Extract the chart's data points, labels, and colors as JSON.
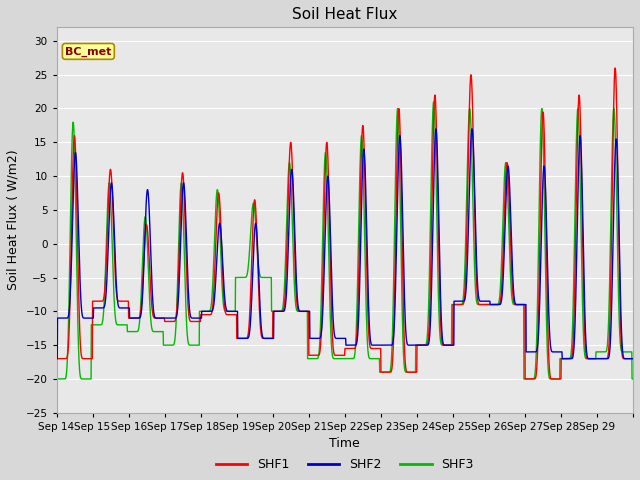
{
  "title": "Soil Heat Flux",
  "xlabel": "Time",
  "ylabel": "Soil Heat Flux (W/m2)",
  "ylim": [
    -25,
    32
  ],
  "yticks": [
    -25,
    -20,
    -15,
    -10,
    -5,
    0,
    5,
    10,
    15,
    20,
    25,
    30
  ],
  "xtick_labels": [
    "Sep 14",
    "Sep 15",
    "Sep 16",
    "Sep 17",
    "Sep 18",
    "Sep 19",
    "Sep 20",
    "Sep 21",
    "Sep 22",
    "Sep 23",
    "Sep 24",
    "Sep 25",
    "Sep 26",
    "Sep 27",
    "Sep 28",
    "Sep 29"
  ],
  "annotation_text": "BC_met",
  "annotation_color": "#8B0000",
  "annotation_bg": "#FFFF99",
  "line_colors": {
    "SHF1": "#FF0000",
    "SHF2": "#0000CC",
    "SHF3": "#00BB00"
  },
  "line_width": 1.0,
  "bg_color": "#D8D8D8",
  "plot_bg": "#E8E8E8",
  "grid_color": "#FFFFFF",
  "title_fontsize": 11,
  "label_fontsize": 9,
  "tick_fontsize": 7.5,
  "days": 16,
  "pts_per_day": 144,
  "shf1_peaks": [
    16.0,
    11.0,
    2.8,
    10.5,
    7.5,
    6.5,
    15.0,
    15.0,
    17.5,
    20.0,
    22.0,
    25.0,
    12.0,
    19.5,
    22.0,
    26.0
  ],
  "shf1_troughs": [
    -17.0,
    -8.5,
    -11.0,
    -11.5,
    -10.5,
    -14.0,
    -10.0,
    -16.5,
    -15.5,
    -19.0,
    -15.0,
    -9.0,
    -9.0,
    -20.0,
    -17.0,
    -17.0
  ],
  "shf2_peaks": [
    13.5,
    9.0,
    8.0,
    9.0,
    3.0,
    3.0,
    11.0,
    10.0,
    14.0,
    16.0,
    17.0,
    17.0,
    11.5,
    11.5,
    16.0,
    15.5
  ],
  "shf2_troughs": [
    -11.0,
    -9.5,
    -11.0,
    -11.0,
    -10.0,
    -14.0,
    -10.0,
    -14.0,
    -15.0,
    -15.0,
    -15.0,
    -8.5,
    -9.0,
    -16.0,
    -17.0,
    -17.0
  ],
  "shf3_peaks": [
    18.0,
    9.0,
    4.0,
    9.0,
    8.0,
    6.0,
    12.0,
    13.5,
    16.0,
    20.0,
    21.0,
    20.0,
    12.0,
    20.0,
    20.0,
    20.0
  ],
  "shf3_troughs": [
    -20.0,
    -12.0,
    -13.0,
    -15.0,
    -10.0,
    -5.0,
    -10.0,
    -17.0,
    -17.0,
    -19.0,
    -15.0,
    -9.0,
    -9.0,
    -20.0,
    -17.0,
    -16.0
  ]
}
